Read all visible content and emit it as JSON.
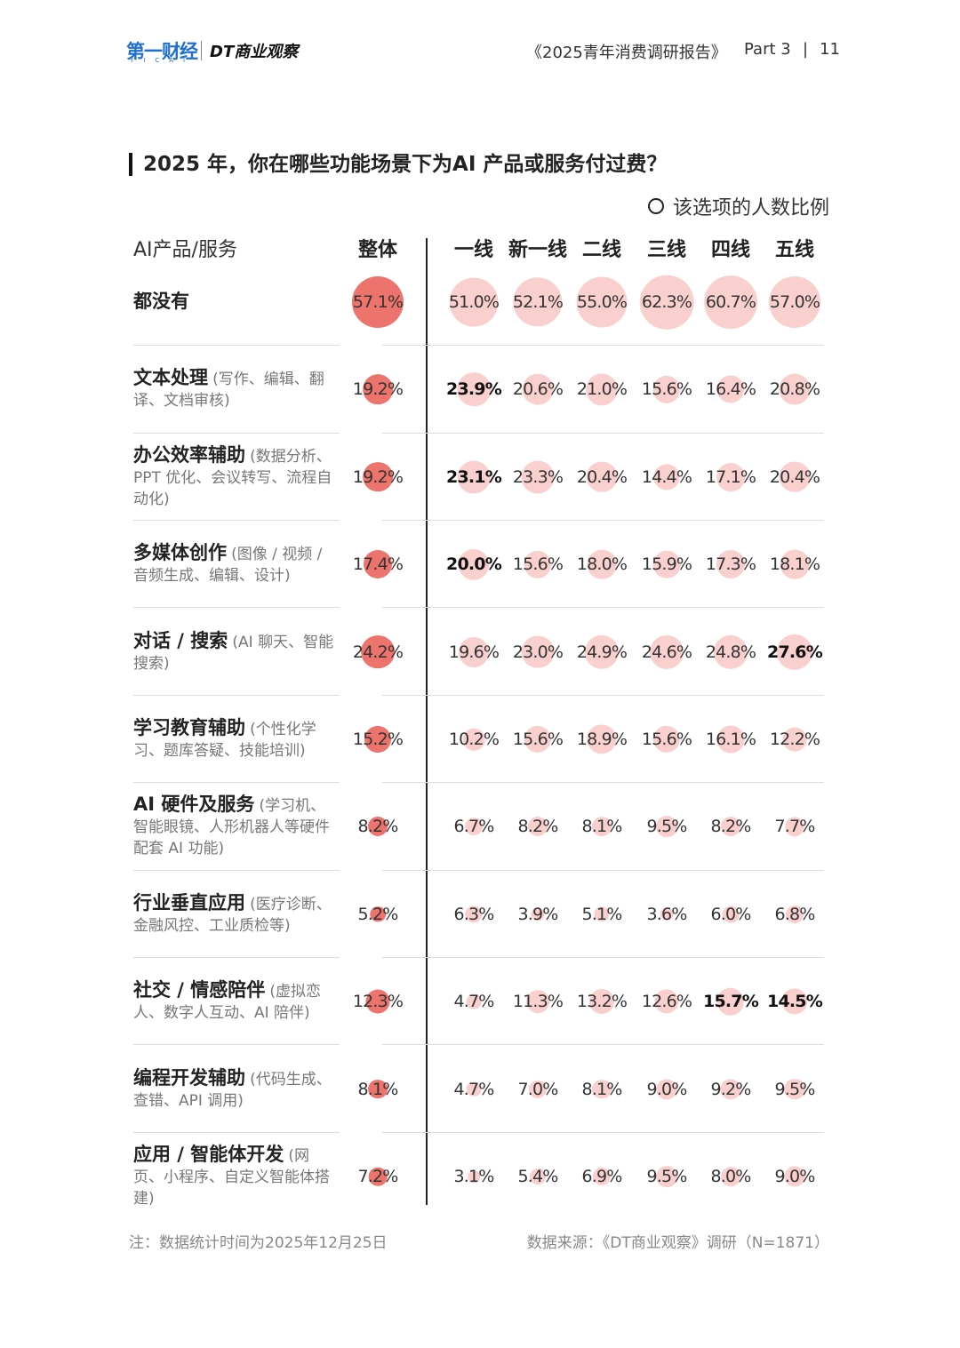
{
  "header": {
    "logo_cn": "第一财经",
    "logo_en": "YICAI",
    "logo_dt": "DT商业观察",
    "report": "《2025青年消费调研报告》",
    "part": "Part 3",
    "page": "11"
  },
  "chart_data": {
    "type": "bubble-table",
    "title": "2025 年，你在哪些功能场景下为AI 产品或服务付过费？",
    "legend": "该选项的人数比例",
    "row_header": "AI产品/服务",
    "columns": [
      "整体",
      "一线",
      "新一线",
      "二线",
      "三线",
      "四线",
      "五线"
    ],
    "overall_color": "#ec746c",
    "color": "#f9d0cd",
    "rows": [
      {
        "name": "都没有",
        "values": [
          57.1,
          51.0,
          52.1,
          55.0,
          62.3,
          60.7,
          57.0
        ],
        "value_labels": [
          "57.1%",
          "51.0%",
          "52.1%",
          "55.0%",
          "62.3%",
          "60.7%",
          "57.0%"
        ],
        "bold": [
          false,
          false,
          false,
          false,
          false,
          false,
          false
        ]
      },
      {
        "name": "文本处理",
        "note": "(写作、编辑、翻译、文档审核)",
        "values": [
          19.2,
          23.9,
          20.6,
          21.0,
          15.6,
          16.4,
          20.8
        ],
        "value_labels": [
          "19.2%",
          "23.9%",
          "20.6%",
          "21.0%",
          "15.6%",
          "16.4%",
          "20.8%"
        ],
        "bold": [
          false,
          true,
          false,
          false,
          false,
          false,
          false
        ]
      },
      {
        "name": "办公效率辅助",
        "note": "(数据分析、PPT 优化、会议转写、流程自动化)",
        "values": [
          19.2,
          23.1,
          23.3,
          20.4,
          14.4,
          17.1,
          20.4
        ],
        "value_labels": [
          "19.2%",
          "23.1%",
          "23.3%",
          "20.4%",
          "14.4%",
          "17.1%",
          "20.4%"
        ],
        "bold": [
          false,
          true,
          false,
          false,
          false,
          false,
          false
        ]
      },
      {
        "name": "多媒体创作",
        "note": "(图像 / 视频 / 音频生成、编辑、设计)",
        "values": [
          17.4,
          20.0,
          15.6,
          18.0,
          15.9,
          17.3,
          18.1
        ],
        "value_labels": [
          "17.4%",
          "20.0%",
          "15.6%",
          "18.0%",
          "15.9%",
          "17.3%",
          "18.1%"
        ],
        "bold": [
          false,
          true,
          false,
          false,
          false,
          false,
          false
        ]
      },
      {
        "name": "对话 / 搜索",
        "note": "(AI 聊天、智能搜索)",
        "values": [
          24.2,
          19.6,
          23.0,
          24.9,
          24.6,
          24.8,
          27.6
        ],
        "value_labels": [
          "24.2%",
          "19.6%",
          "23.0%",
          "24.9%",
          "24.6%",
          "24.8%",
          "27.6%"
        ],
        "bold": [
          false,
          false,
          false,
          false,
          false,
          false,
          true
        ]
      },
      {
        "name": "学习教育辅助",
        "note": "(个性化学习、题库答疑、技能培训)",
        "values": [
          15.2,
          10.2,
          15.6,
          18.9,
          15.6,
          16.1,
          12.2
        ],
        "value_labels": [
          "15.2%",
          "10.2%",
          "15.6%",
          "18.9%",
          "15.6%",
          "16.1%",
          "12.2%"
        ],
        "bold": [
          false,
          false,
          false,
          false,
          false,
          false,
          false
        ]
      },
      {
        "name": "AI 硬件及服务",
        "note": "(学习机、智能眼镜、人形机器人等硬件配套 AI 功能)",
        "values": [
          8.2,
          6.7,
          8.2,
          8.1,
          9.5,
          8.2,
          7.7
        ],
        "value_labels": [
          "8.2%",
          "6.7%",
          "8.2%",
          "8.1%",
          "9.5%",
          "8.2%",
          "7.7%"
        ],
        "bold": [
          false,
          false,
          false,
          false,
          false,
          false,
          false
        ]
      },
      {
        "name": "行业垂直应用",
        "note": "(医疗诊断、金融风控、工业质检等)",
        "values": [
          5.2,
          6.3,
          3.9,
          5.1,
          3.6,
          6.0,
          6.8
        ],
        "value_labels": [
          "5.2%",
          "6.3%",
          "3.9%",
          "5.1%",
          "3.6%",
          "6.0%",
          "6.8%"
        ],
        "bold": [
          false,
          false,
          false,
          false,
          false,
          false,
          false
        ]
      },
      {
        "name": "社交 / 情感陪伴",
        "note": "(虚拟恋人、数字人互动、AI 陪伴)",
        "values": [
          12.3,
          4.7,
          11.3,
          13.2,
          12.6,
          15.7,
          14.5
        ],
        "value_labels": [
          "12.3%",
          "4.7%",
          "11.3%",
          "13.2%",
          "12.6%",
          "15.7%",
          "14.5%"
        ],
        "bold": [
          false,
          false,
          false,
          false,
          false,
          true,
          true
        ]
      },
      {
        "name": "编程开发辅助",
        "note": "(代码生成、查错、API 调用)",
        "values": [
          8.1,
          4.7,
          7.0,
          8.1,
          9.0,
          9.2,
          9.5
        ],
        "value_labels": [
          "8.1%",
          "4.7%",
          "7.0%",
          "8.1%",
          "9.0%",
          "9.2%",
          "9.5%"
        ],
        "bold": [
          false,
          false,
          false,
          false,
          false,
          false,
          false
        ]
      },
      {
        "name": "应用 / 智能体开发",
        "note": "(网页、小程序、自定义智能体搭建)",
        "values": [
          7.2,
          3.1,
          5.4,
          6.9,
          9.5,
          8.0,
          9.0
        ],
        "value_labels": [
          "7.2%",
          "3.1%",
          "5.4%",
          "6.9%",
          "9.5%",
          "8.0%",
          "9.0%"
        ],
        "bold": [
          false,
          false,
          false,
          false,
          false,
          false,
          false
        ]
      }
    ]
  },
  "footer": {
    "note": "注：数据统计时间为2025年12月25日",
    "source": "数据来源：《DT商业观察》调研（N=1871）"
  }
}
